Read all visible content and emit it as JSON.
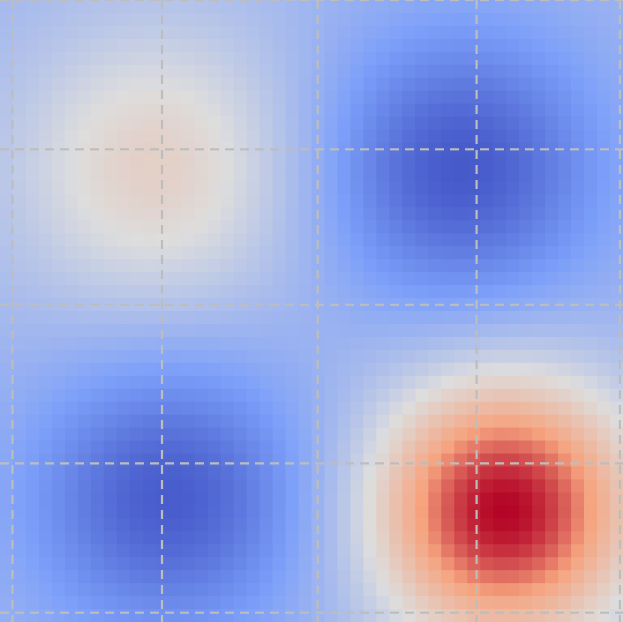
{
  "chart_data": {
    "type": "heatmap",
    "title": "",
    "xlabel": "",
    "ylabel": "",
    "colormap": "coolwarm",
    "value_range": [
      -1,
      1
    ],
    "grid": true,
    "grid_style": "dashed",
    "grid_color": "#bdbdbd",
    "colorbar": false,
    "axes_visible": false,
    "x_gridlines": [
      0.02,
      0.26,
      0.51,
      0.765,
      0.995
    ],
    "y_gridlines": [
      0.0,
      0.24,
      0.49,
      0.745,
      0.985
    ],
    "blobs": [
      {
        "region": "top-left",
        "x": 0.25,
        "y": 0.27,
        "peak": 0.12,
        "spread": 0.16
      },
      {
        "region": "top-right",
        "x": 0.74,
        "y": 0.27,
        "peak": -0.92,
        "spread": 0.15
      },
      {
        "region": "bottom-left",
        "x": 0.27,
        "y": 0.8,
        "peak": -0.9,
        "spread": 0.15
      },
      {
        "region": "bottom-right",
        "x": 0.81,
        "y": 0.82,
        "peak": 1.0,
        "spread": 0.14
      }
    ],
    "baseline": -0.32,
    "cells_x": 48,
    "cells_y": 48
  }
}
